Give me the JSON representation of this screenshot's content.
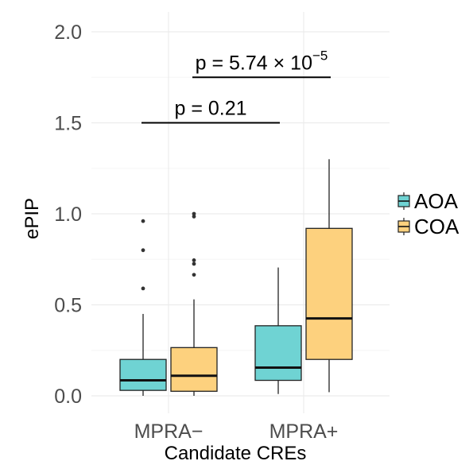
{
  "chart_data": {
    "type": "boxplot",
    "title": "",
    "xlabel": "Candidate CREs",
    "ylabel": "ePIP",
    "ylim": [
      -0.05,
      2.1
    ],
    "yticks": [
      "0.0",
      "0.5",
      "1.0",
      "1.5",
      "2.0"
    ],
    "categories": [
      "MPRA−",
      "MPRA+"
    ],
    "grid": true,
    "legend_position": "right",
    "series": [
      {
        "name": "AOA",
        "color": "#6fd3d3",
        "boxes": [
          {
            "category": "MPRA−",
            "q1": 0.03,
            "median": 0.085,
            "q3": 0.2,
            "whisker_low": 0.0,
            "whisker_high": 0.45,
            "outliers": [
              0.59,
              0.8,
              0.96
            ]
          },
          {
            "category": "MPRA+",
            "q1": 0.085,
            "median": 0.155,
            "q3": 0.385,
            "whisker_low": 0.01,
            "whisker_high": 0.705,
            "outliers": []
          }
        ]
      },
      {
        "name": "COA",
        "color": "#fdd17e",
        "boxes": [
          {
            "category": "MPRA−",
            "q1": 0.025,
            "median": 0.11,
            "q3": 0.265,
            "whisker_low": 0.0,
            "whisker_high": 0.53,
            "outliers": [
              0.665,
              0.725,
              0.745,
              0.985,
              1.0
            ]
          },
          {
            "category": "MPRA+",
            "q1": 0.2,
            "median": 0.425,
            "q3": 0.92,
            "whisker_low": 0.02,
            "whisker_high": 1.3,
            "outliers": []
          }
        ]
      }
    ],
    "annotations": [
      {
        "label_prefix": "p = ",
        "label_value": "0.21",
        "label_exponent": "",
        "y": 1.5,
        "x_from": "AOA:MPRA−",
        "x_to": "AOA:MPRA+"
      },
      {
        "label_prefix": "p = ",
        "label_value": "5.74 × 10",
        "label_exponent": "−5",
        "y": 1.75,
        "x_from": "COA:MPRA−",
        "x_to": "COA:MPRA+"
      }
    ]
  }
}
